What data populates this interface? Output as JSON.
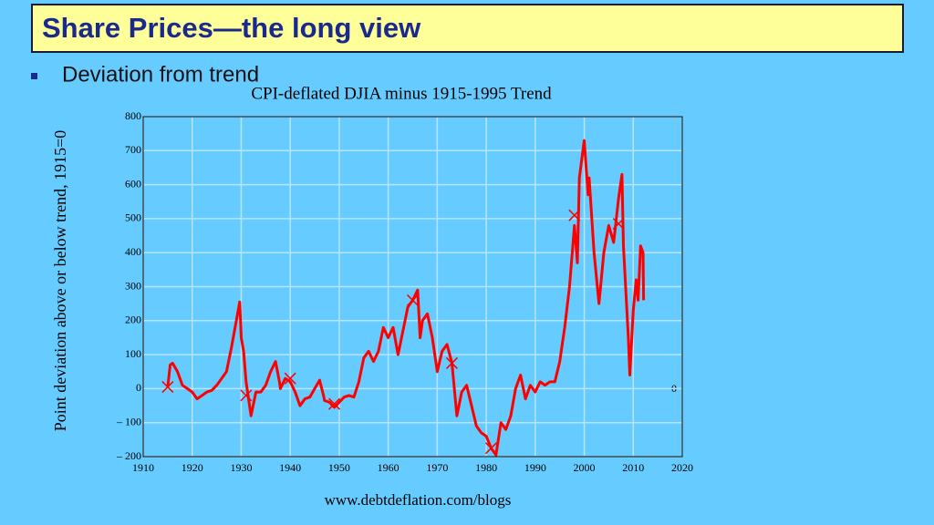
{
  "header": {
    "title": "Share Prices—the long view",
    "bullet": "Deviation from trend"
  },
  "chart_data": {
    "type": "line",
    "title": "CPI-deflated DJIA minus 1915-1995 Trend",
    "y_label": "Point deviation above or below trend, 1915=0",
    "source": "www.debtdeflation.com/blogs",
    "annotation": "0",
    "xlim": [
      1910,
      2020
    ],
    "xticks": [
      1910,
      1920,
      1930,
      1940,
      1950,
      1960,
      1970,
      1980,
      1990,
      2000,
      2010,
      2020
    ],
    "ylim": [
      -200,
      800
    ],
    "yticks": [
      {
        "value": -200,
        "label": "– 200"
      },
      {
        "value": -100,
        "label": "– 100"
      },
      0,
      100,
      200,
      300,
      400,
      500,
      600,
      700,
      800
    ],
    "grid": true,
    "series": [
      {
        "color": "#ff0000",
        "x": [
          1915,
          1915.5,
          1916,
          1917,
          1918,
          1919,
          1920,
          1921,
          1922,
          1923,
          1924,
          1925,
          1926,
          1927,
          1928,
          1929,
          1929.7,
          1930,
          1930.5,
          1931,
          1932,
          1933,
          1934,
          1935,
          1936,
          1937,
          1937.8,
          1938,
          1939,
          1940,
          1941,
          1942,
          1943,
          1944,
          1945,
          1946,
          1946.8,
          1947,
          1948,
          1949,
          1950,
          1951,
          1952,
          1953,
          1954,
          1955,
          1956,
          1957,
          1958,
          1959,
          1960,
          1961,
          1962,
          1963,
          1964,
          1965,
          1966,
          1966.5,
          1967,
          1968,
          1969,
          1970,
          1971,
          1972,
          1973,
          1974,
          1975,
          1976,
          1977,
          1978,
          1979,
          1980,
          1981,
          1982,
          1983,
          1984,
          1985,
          1986,
          1987,
          1988,
          1989,
          1990,
          1991,
          1992,
          1993,
          1994,
          1995,
          1996,
          1997,
          1998,
          1998.6,
          1999,
          2000,
          2000.8,
          2001,
          2002,
          2003,
          2004,
          2005,
          2006,
          2007,
          2007.7,
          2008,
          2009,
          2009.3,
          2010,
          2010.6,
          2011,
          2011.5,
          2012,
          2012.1
        ],
        "values": [
          5,
          70,
          75,
          50,
          10,
          0,
          -10,
          -30,
          -20,
          -10,
          -5,
          10,
          30,
          50,
          120,
          200,
          255,
          150,
          110,
          20,
          -80,
          -10,
          -10,
          10,
          50,
          80,
          20,
          0,
          30,
          20,
          -10,
          -50,
          -30,
          -25,
          0,
          25,
          -20,
          -35,
          -40,
          -55,
          -40,
          -25,
          -20,
          -25,
          20,
          90,
          110,
          80,
          110,
          180,
          150,
          180,
          100,
          170,
          240,
          260,
          290,
          150,
          200,
          220,
          150,
          50,
          110,
          130,
          75,
          -80,
          -10,
          10,
          -50,
          -110,
          -130,
          -140,
          -175,
          -195,
          -100,
          -120,
          -80,
          0,
          40,
          -30,
          10,
          -10,
          20,
          10,
          20,
          20,
          80,
          180,
          300,
          480,
          370,
          620,
          730,
          570,
          620,
          400,
          250,
          400,
          480,
          430,
          560,
          630,
          420,
          150,
          40,
          230,
          320,
          260,
          420,
          400,
          260
        ]
      }
    ],
    "markers": {
      "x": [
        1915,
        1931,
        1940,
        1949,
        1965,
        1973,
        1981,
        1998,
        2007
      ],
      "values": [
        5,
        -20,
        30,
        -45,
        260,
        75,
        -175,
        510,
        485
      ]
    }
  }
}
